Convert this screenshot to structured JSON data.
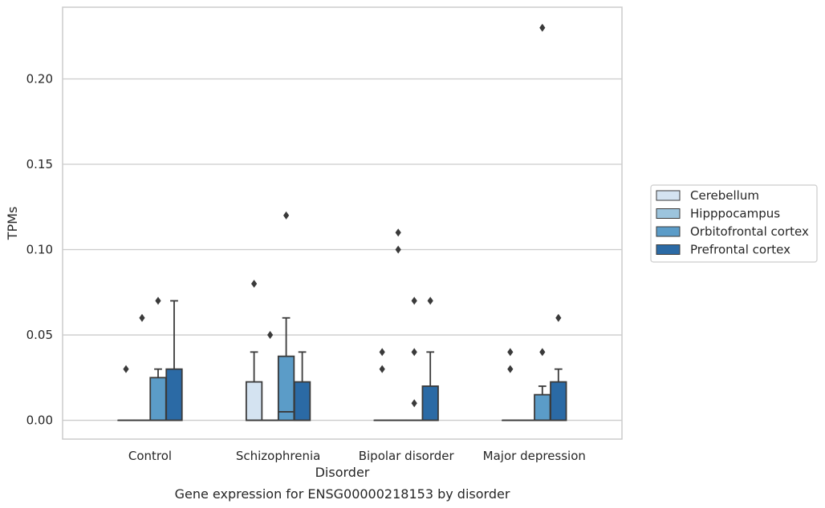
{
  "chart_data": {
    "type": "boxplot",
    "xlabel": "Disorder",
    "ylabel": "TPMs",
    "caption": "Gene expression for ENSG00000218153 by disorder",
    "ylim": [
      -0.011,
      0.242
    ],
    "yticks": [
      0.0,
      0.05,
      0.1,
      0.15,
      0.2
    ],
    "ytick_labels": [
      "0.00",
      "0.05",
      "0.10",
      "0.15",
      "0.20"
    ],
    "grid": true,
    "legend_position": "right",
    "categories": [
      "Control",
      "Schizophrenia",
      "Bipolar disorder",
      "Major depression"
    ],
    "series": [
      {
        "name": "Cerebellum",
        "color": "#d4e3f1",
        "boxes": [
          {
            "q1": 0,
            "median": 0,
            "q3": 0,
            "whisker_low": 0,
            "whisker_high": 0,
            "outliers": [
              0.03
            ]
          },
          {
            "q1": 0,
            "median": 0,
            "q3": 0.0225,
            "whisker_low": 0,
            "whisker_high": 0.04,
            "outliers": [
              0.08
            ]
          },
          {
            "q1": 0,
            "median": 0,
            "q3": 0,
            "whisker_low": 0,
            "whisker_high": 0,
            "outliers": [
              0.03,
              0.04
            ]
          },
          {
            "q1": 0,
            "median": 0,
            "q3": 0,
            "whisker_low": 0,
            "whisker_high": 0,
            "outliers": [
              0.03,
              0.04
            ]
          }
        ]
      },
      {
        "name": "Hipppocampus",
        "color": "#9cc4dd",
        "boxes": [
          {
            "q1": 0,
            "median": 0,
            "q3": 0,
            "whisker_low": 0,
            "whisker_high": 0,
            "outliers": [
              0.06
            ]
          },
          {
            "q1": 0,
            "median": 0,
            "q3": 0,
            "whisker_low": 0,
            "whisker_high": 0,
            "outliers": [
              0.05
            ]
          },
          {
            "q1": 0,
            "median": 0,
            "q3": 0,
            "whisker_low": 0,
            "whisker_high": 0,
            "outliers": [
              0.1,
              0.11
            ]
          },
          {
            "q1": 0,
            "median": 0,
            "q3": 0,
            "whisker_low": 0,
            "whisker_high": 0,
            "outliers": []
          }
        ]
      },
      {
        "name": "Orbitofrontal cortex",
        "color": "#5b9cc8",
        "boxes": [
          {
            "q1": 0,
            "median": 0,
            "q3": 0.025,
            "whisker_low": 0,
            "whisker_high": 0.03,
            "outliers": [
              0.07
            ]
          },
          {
            "q1": 0,
            "median": 0.005,
            "q3": 0.0375,
            "whisker_low": 0,
            "whisker_high": 0.06,
            "outliers": [
              0.12
            ]
          },
          {
            "q1": 0,
            "median": 0,
            "q3": 0,
            "whisker_low": 0,
            "whisker_high": 0,
            "outliers": [
              0.01,
              0.04,
              0.07
            ]
          },
          {
            "q1": 0,
            "median": 0,
            "q3": 0.015,
            "whisker_low": 0,
            "whisker_high": 0.02,
            "outliers": [
              0.04,
              0.23
            ]
          }
        ]
      },
      {
        "name": "Prefrontal cortex",
        "color": "#2b6aa5",
        "boxes": [
          {
            "q1": 0,
            "median": 0,
            "q3": 0.03,
            "whisker_low": 0,
            "whisker_high": 0.07,
            "outliers": []
          },
          {
            "q1": 0,
            "median": 0,
            "q3": 0.0225,
            "whisker_low": 0,
            "whisker_high": 0.04,
            "outliers": []
          },
          {
            "q1": 0,
            "median": 0,
            "q3": 0.02,
            "whisker_low": 0,
            "whisker_high": 0.04,
            "outliers": [
              0.07
            ]
          },
          {
            "q1": 0,
            "median": 0,
            "q3": 0.0225,
            "whisker_low": 0,
            "whisker_high": 0.03,
            "outliers": [
              0.06
            ]
          }
        ]
      }
    ]
  }
}
